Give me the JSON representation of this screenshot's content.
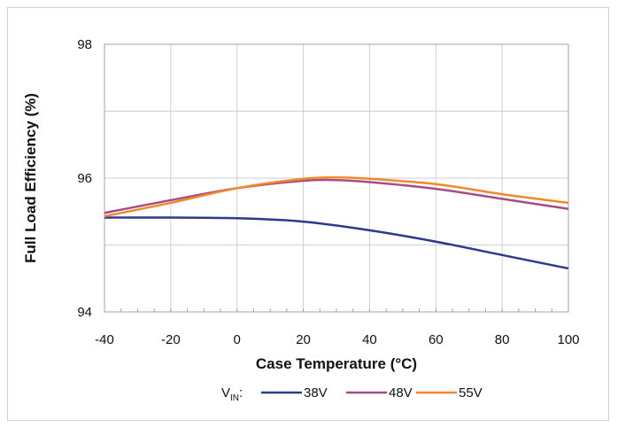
{
  "chart_data": {
    "type": "line",
    "title": "",
    "xlabel": "Case Temperature (°C)",
    "ylabel": "Full Load Efficiency (%)",
    "xlim": [
      -40,
      100
    ],
    "ylim": [
      94,
      98
    ],
    "x_ticks": [
      "-40",
      "-20",
      "0",
      "20",
      "40",
      "60",
      "80",
      "100"
    ],
    "y_ticks": [
      "94",
      "96",
      "98"
    ],
    "grid": true,
    "legend_position": "bottom",
    "legend_prefix": {
      "main": "V",
      "sub": "IN",
      "suffix": ":"
    },
    "series": [
      {
        "name": "38V",
        "color": "#2b3a8f",
        "points": [
          [
            -40,
            95.41
          ],
          [
            -20,
            95.41
          ],
          [
            0,
            95.4
          ],
          [
            20,
            95.35
          ],
          [
            40,
            95.22
          ],
          [
            60,
            95.05
          ],
          [
            80,
            94.85
          ],
          [
            100,
            94.65
          ]
        ]
      },
      {
        "name": "48V",
        "color": "#a54e86",
        "points": [
          [
            -40,
            95.48
          ],
          [
            -20,
            95.67
          ],
          [
            0,
            95.85
          ],
          [
            20,
            95.96
          ],
          [
            30,
            95.97
          ],
          [
            40,
            95.94
          ],
          [
            60,
            95.84
          ],
          [
            80,
            95.69
          ],
          [
            100,
            95.54
          ]
        ]
      },
      {
        "name": "55V",
        "color": "#f0892c",
        "points": [
          [
            -40,
            95.43
          ],
          [
            -20,
            95.63
          ],
          [
            0,
            95.85
          ],
          [
            20,
            95.99
          ],
          [
            30,
            96.01
          ],
          [
            40,
            95.99
          ],
          [
            60,
            95.91
          ],
          [
            80,
            95.76
          ],
          [
            100,
            95.63
          ]
        ]
      }
    ]
  }
}
